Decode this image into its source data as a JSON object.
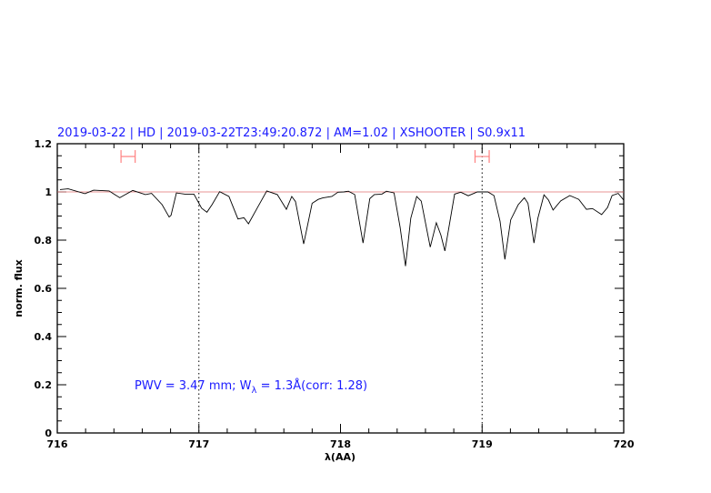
{
  "chart_data": {
    "type": "line",
    "title": "2019-03-22 | HD | 2019-03-22T23:49:20.872 | AM=1.02 | XSHOOTER | S0.9x11",
    "xlabel": "λ(AA)",
    "ylabel": "norm. flux",
    "xlim": [
      716,
      720
    ],
    "ylim": [
      0,
      1.2
    ],
    "xticks": [
      "716",
      "717",
      "718",
      "719",
      "720"
    ],
    "yticks": [
      "0",
      "0.2",
      "0.4",
      "0.6",
      "0.8",
      "1",
      "1.2"
    ],
    "grid": false,
    "reference_line": 1,
    "vertical_markers": [
      717,
      719
    ],
    "annotation": {
      "pre": "PWV = 3.47 mm; W",
      "sub": "λ",
      "post": " = 1.3Å(corr: 1.28)"
    },
    "error_bars": [
      {
        "x_from": 716.45,
        "x_to": 716.55,
        "y": 1.147
      },
      {
        "x_from": 718.95,
        "x_to": 719.05,
        "y": 1.147
      }
    ],
    "colors": {
      "spectrum": "#000000",
      "reference": "#e07070",
      "errorbar": "#ff8080",
      "title": "#1a1aff",
      "markers": "#000000"
    },
    "series": [
      {
        "x": [
          716.019,
          716.077,
          716.195,
          716.257,
          716.366,
          716.441,
          716.533,
          716.623,
          716.666,
          716.74,
          716.79,
          716.803,
          716.841,
          716.901,
          716.965,
          717.019,
          717.057,
          717.093,
          717.147,
          717.212,
          717.276,
          717.318,
          717.35,
          717.414,
          717.479,
          717.554,
          717.618,
          717.656,
          717.682,
          717.74,
          717.8,
          717.843,
          717.875,
          717.939,
          717.982,
          718.024,
          718.056,
          718.1,
          718.159,
          718.207,
          718.239,
          718.292,
          718.324,
          718.378,
          718.421,
          718.459,
          718.496,
          718.538,
          718.57,
          718.634,
          718.677,
          718.709,
          718.737,
          718.806,
          718.849,
          718.902,
          718.966,
          719.041,
          719.084,
          719.127,
          719.161,
          719.202,
          719.255,
          719.298,
          719.324,
          719.366,
          719.394,
          719.437,
          719.469,
          719.501,
          719.555,
          719.619,
          719.683,
          719.737,
          719.78,
          719.844,
          719.886,
          719.918,
          719.961,
          720.0
        ],
        "y": [
          1.01,
          1.013,
          0.993,
          1.007,
          1.004,
          0.976,
          1.006,
          0.989,
          0.994,
          0.947,
          0.896,
          0.903,
          0.996,
          0.991,
          0.991,
          0.933,
          0.916,
          0.947,
          1.001,
          0.981,
          0.888,
          0.893,
          0.868,
          0.935,
          1.004,
          0.989,
          0.928,
          0.981,
          0.96,
          0.784,
          0.953,
          0.969,
          0.975,
          0.981,
          0.999,
          1.0,
          1.003,
          0.989,
          0.788,
          0.972,
          0.989,
          0.991,
          1.003,
          0.996,
          0.853,
          0.692,
          0.891,
          0.981,
          0.962,
          0.771,
          0.872,
          0.821,
          0.755,
          0.991,
          0.999,
          0.984,
          1.0,
          1.0,
          0.985,
          0.878,
          0.72,
          0.884,
          0.947,
          0.976,
          0.953,
          0.788,
          0.891,
          0.988,
          0.966,
          0.925,
          0.963,
          0.985,
          0.969,
          0.928,
          0.931,
          0.906,
          0.935,
          0.985,
          0.994,
          0.966
        ]
      }
    ]
  }
}
